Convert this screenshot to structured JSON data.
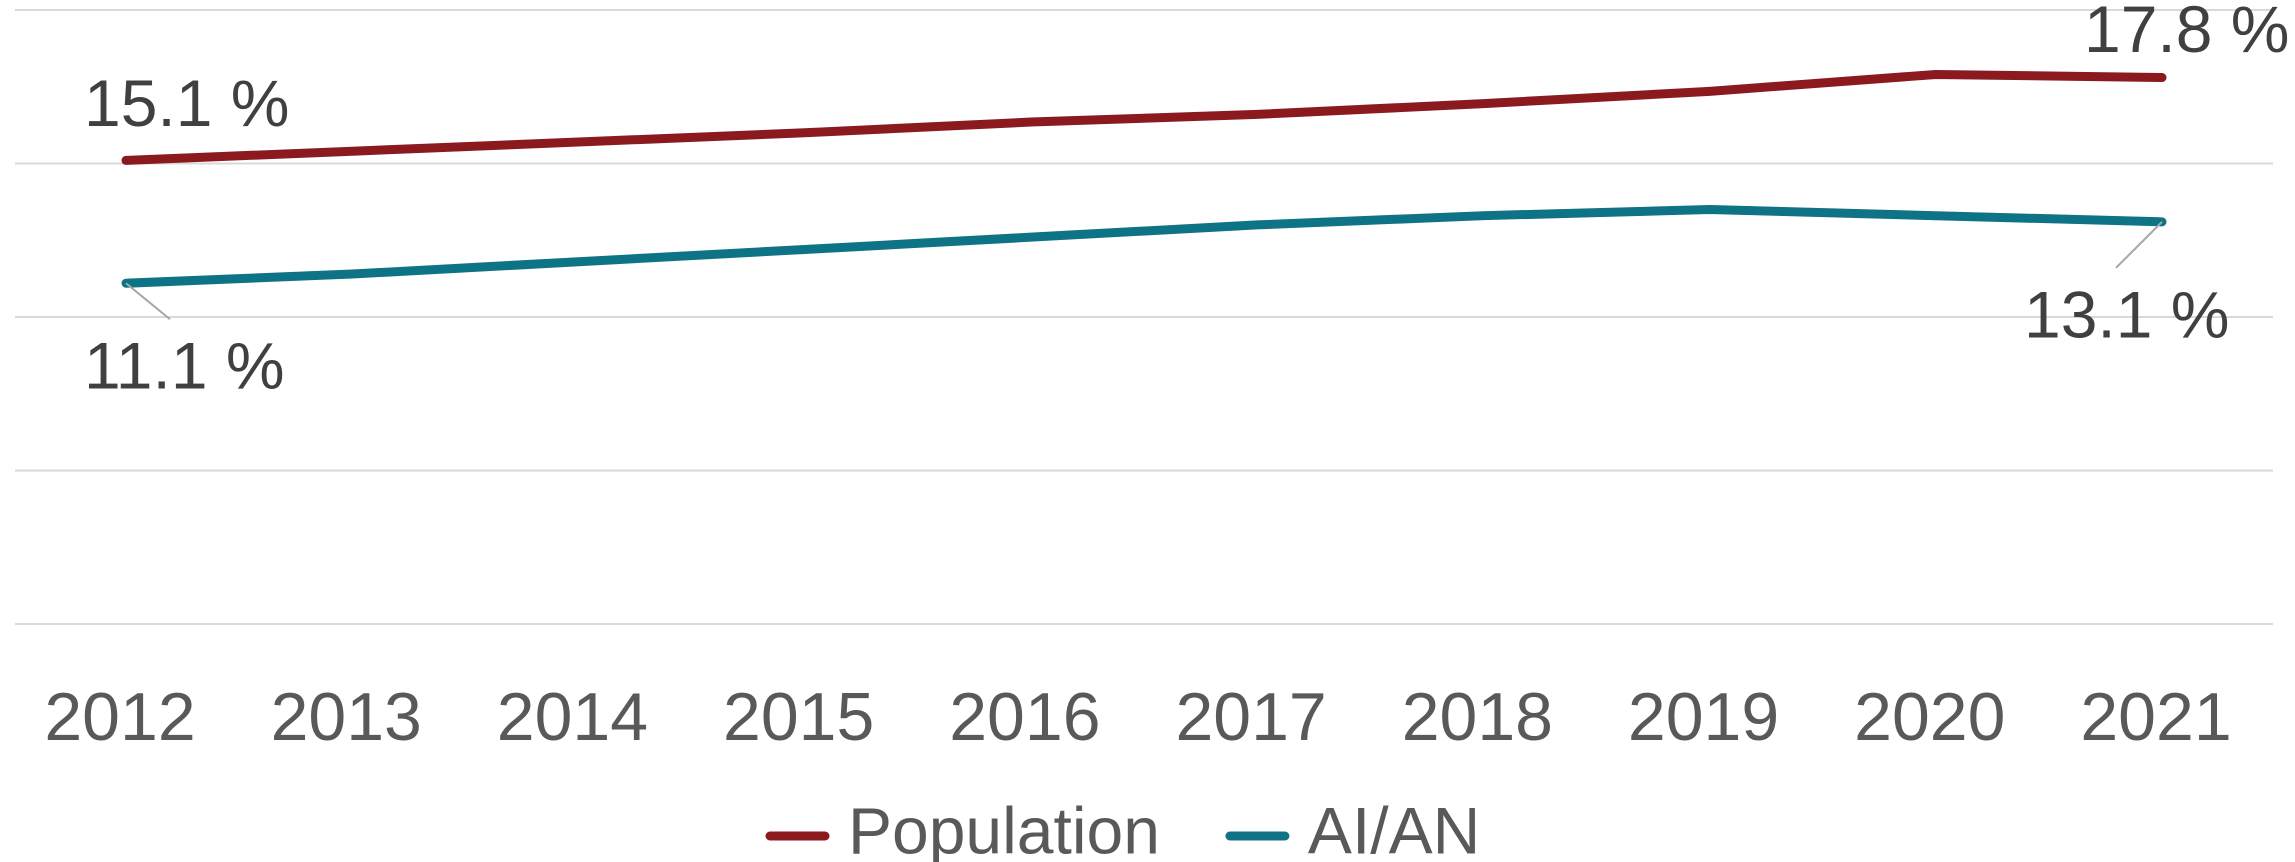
{
  "chart_data": {
    "type": "line",
    "categories": [
      "2012",
      "2013",
      "2014",
      "2015",
      "2016",
      "2017",
      "2018",
      "2019",
      "2020",
      "2021"
    ],
    "series": [
      {
        "name": "Population",
        "color": "#8b1a1f",
        "values": [
          15.1,
          15.4,
          15.7,
          16.0,
          16.35,
          16.6,
          16.95,
          17.35,
          17.9,
          17.8
        ],
        "value_labels": [
          "15.1 %",
          null,
          null,
          null,
          null,
          null,
          null,
          null,
          null,
          "17.8 %"
        ]
      },
      {
        "name": "AI/AN",
        "color": "#0e7384",
        "values": [
          11.1,
          11.4,
          11.8,
          12.2,
          12.6,
          13.0,
          13.3,
          13.5,
          13.3,
          13.1
        ],
        "value_labels": [
          "11.1 %",
          null,
          null,
          null,
          null,
          null,
          null,
          null,
          null,
          "13.1 %"
        ]
      }
    ],
    "ylim": [
      0,
      20
    ],
    "yticks": [
      0,
      5,
      10,
      15,
      20
    ],
    "grid": true,
    "legend": "bottom"
  }
}
